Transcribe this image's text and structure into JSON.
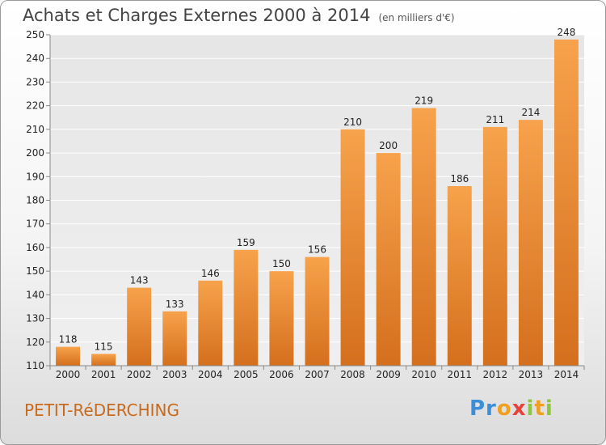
{
  "chart_data": {
    "type": "bar",
    "title": "Achats et Charges Externes 2000 à 2014",
    "subtitle": "(en milliers d'€)",
    "categories": [
      "2000",
      "2001",
      "2002",
      "2003",
      "2004",
      "2005",
      "2006",
      "2007",
      "2008",
      "2009",
      "2010",
      "2011",
      "2012",
      "2013",
      "2014"
    ],
    "values": [
      118,
      115,
      143,
      133,
      146,
      159,
      150,
      156,
      210,
      200,
      219,
      186,
      211,
      214,
      248
    ],
    "ylim": [
      110,
      250
    ],
    "yticks": [
      110,
      120,
      130,
      140,
      150,
      160,
      170,
      180,
      190,
      200,
      210,
      220,
      230,
      240,
      250
    ],
    "grid": true,
    "bar_color": "#f0943c"
  },
  "footer": {
    "town": "PETIT-RéDERCHING",
    "logo": {
      "p1": "Pr",
      "p2": "o",
      "p3": "x",
      "p4": "i",
      "p5": "t",
      "p6": "i"
    }
  }
}
